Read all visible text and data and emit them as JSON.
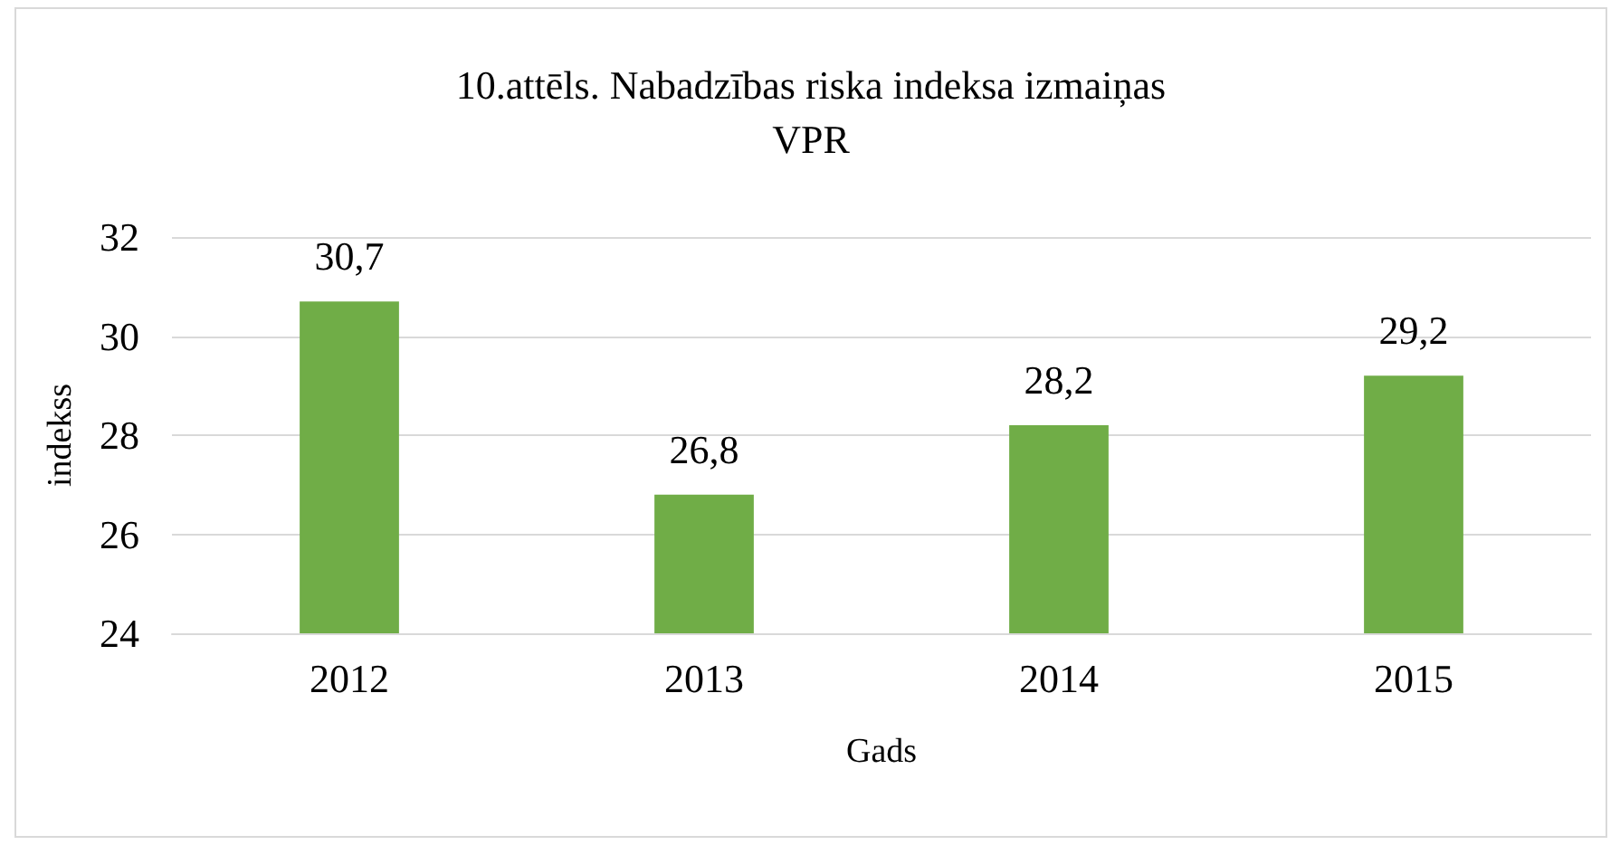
{
  "chart_data": {
    "type": "bar",
    "title": "10.attēls. Nabadzības riska indeksa izmaiņas\nVPR",
    "xlabel": "Gads",
    "ylabel": "indekss",
    "categories": [
      "2012",
      "2013",
      "2014",
      "2015"
    ],
    "values": [
      30.7,
      26.8,
      28.2,
      29.2
    ],
    "value_labels": [
      "30,7",
      "26,8",
      "28,2",
      "29,2"
    ],
    "color": "#70ad47",
    "ylim": [
      24,
      32
    ],
    "yticks": [
      24,
      26,
      28,
      30,
      32
    ],
    "grid": "y"
  }
}
